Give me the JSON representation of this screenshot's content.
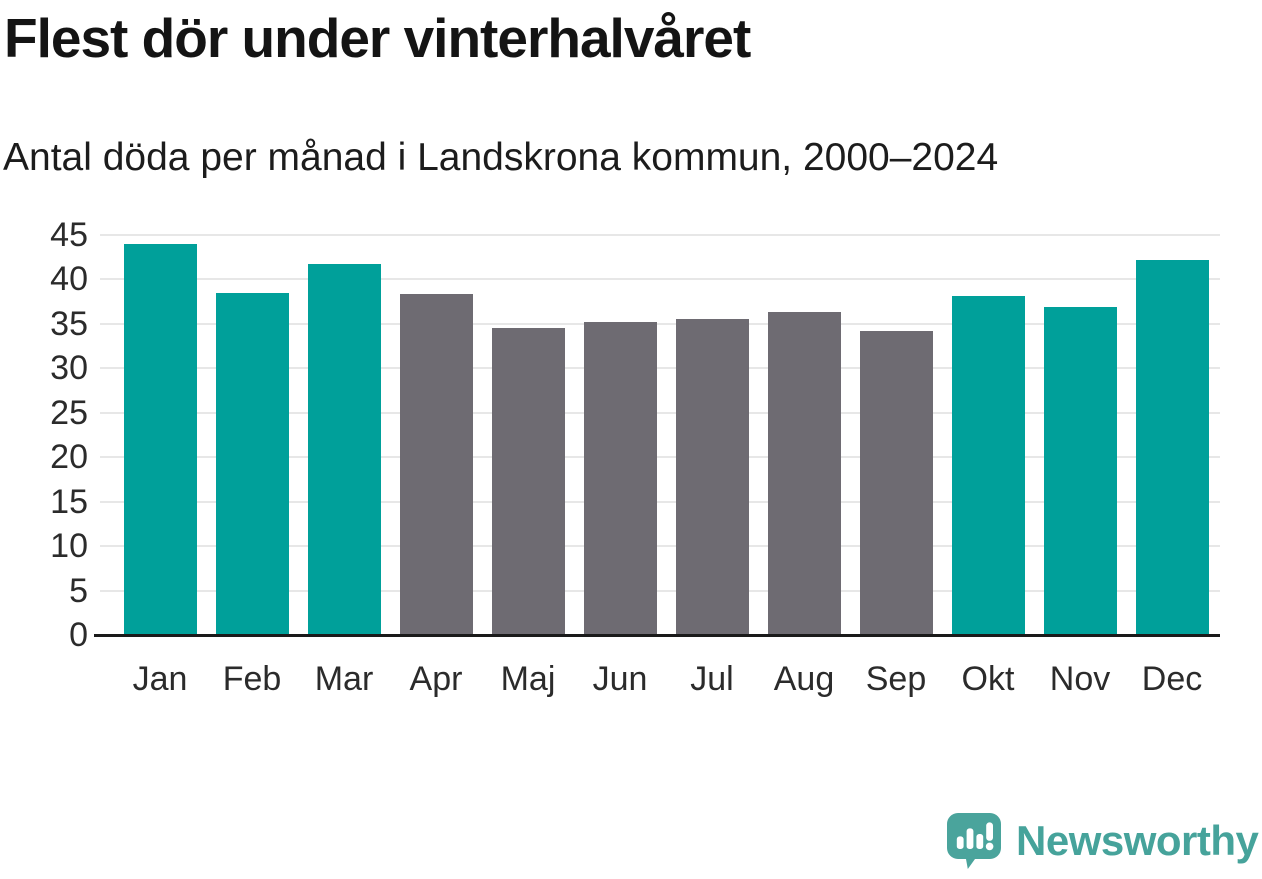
{
  "header": {
    "title": "Flest dör under vinterhalvåret",
    "subtitle": "Antal döda per månad i Landskrona kommun, 2000–2024"
  },
  "chart_data": {
    "type": "bar",
    "title": "Flest dör under vinterhalvåret",
    "subtitle": "Antal döda per månad i Landskrona kommun, 2000–2024",
    "categories": [
      "Jan",
      "Feb",
      "Mar",
      "Apr",
      "Maj",
      "Jun",
      "Jul",
      "Aug",
      "Sep",
      "Okt",
      "Nov",
      "Dec"
    ],
    "values": [
      44,
      38.5,
      41.7,
      38.4,
      34.5,
      35.2,
      35.5,
      36.3,
      34.2,
      38.1,
      36.9,
      42.2
    ],
    "bar_colors": [
      "#00A09A",
      "#00A09A",
      "#00A09A",
      "#6E6B72",
      "#6E6B72",
      "#6E6B72",
      "#6E6B72",
      "#6E6B72",
      "#6E6B72",
      "#00A09A",
      "#00A09A",
      "#00A09A"
    ],
    "color_legend": {
      "winter_half_year": "#00A09A",
      "summer_half_year": "#6E6B72"
    },
    "xlabel": "",
    "ylabel": "",
    "ylim": [
      0,
      45
    ],
    "ytick_step": 5,
    "yticks": [
      0,
      5,
      10,
      15,
      20,
      25,
      30,
      35,
      40,
      45
    ],
    "grid": true,
    "gridline_color": "#e7e7e7",
    "baseline_color": "#1a1a1a",
    "legend_position": "none"
  },
  "footer": {
    "brand": "Newsworthy",
    "brand_color": "#46A39B",
    "logo_icon": "newsworthy-speech-bubble-bar-chart-icon"
  }
}
